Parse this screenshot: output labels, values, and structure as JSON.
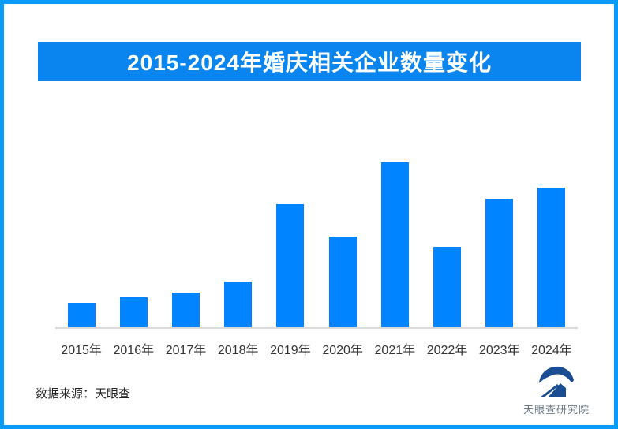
{
  "banner": {
    "title": "2015-2024年婚庆相关企业数量变化"
  },
  "chart_data": {
    "type": "bar",
    "title": "2015-2024年婚庆相关企业数量变化",
    "categories": [
      "2015年",
      "2016年",
      "2017年",
      "2018年",
      "2019年",
      "2020年",
      "2021年",
      "2022年",
      "2023年",
      "2024年"
    ],
    "values": [
      15,
      18,
      21,
      28,
      75,
      55,
      100,
      49,
      78,
      85
    ],
    "value_note": "relative units estimated from bar heights; no y-axis labels shown",
    "xlabel": "",
    "ylabel": "",
    "ylim": [
      0,
      127
    ],
    "grid": false,
    "legend": false
  },
  "footer": {
    "source_text": "数据来源：天眼查",
    "logo_text": "天眼查研究院",
    "logo_icon": "tianyancha-eye-logo"
  },
  "colors": {
    "frame_border": "#0a9af8",
    "banner_bg": "#0a85f0",
    "banner_text": "#ffffff",
    "bar": "#0084ff",
    "axis_line": "#d9d9d9",
    "x_label": "#333333",
    "source_text": "#222222",
    "logo_blue": "#1b4d92",
    "logo_text": "#6e7a85",
    "background": "#ffffff"
  }
}
